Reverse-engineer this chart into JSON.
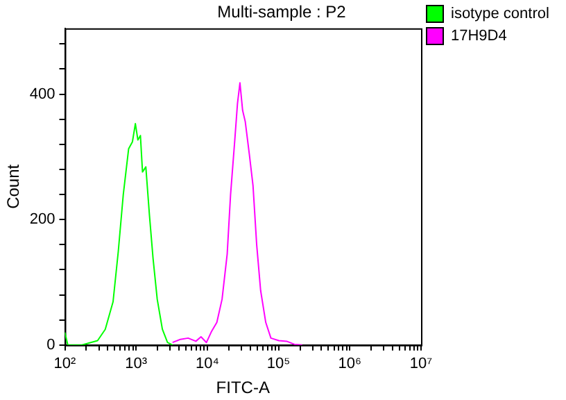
{
  "chart_data": {
    "type": "line",
    "title": "Multi-sample : P2",
    "xlabel": "FITC-A",
    "ylabel": "Count",
    "log": "x",
    "grid": false,
    "legend": "right",
    "marker": "none",
    "line_style": "solid",
    "xlim": [
      100,
      10000000
    ],
    "ylim": [
      0,
      505
    ],
    "xticks": [
      {
        "value": 100,
        "label": "10²"
      },
      {
        "value": 200,
        "label": null
      },
      {
        "value": 300,
        "label": null
      },
      {
        "value": 400,
        "label": null
      },
      {
        "value": 500,
        "label": null
      },
      {
        "value": 600,
        "label": null
      },
      {
        "value": 700,
        "label": null
      },
      {
        "value": 800,
        "label": null
      },
      {
        "value": 900,
        "label": null
      },
      {
        "value": 1000,
        "label": "10³"
      },
      {
        "value": 2000,
        "label": null
      },
      {
        "value": 3000,
        "label": null
      },
      {
        "value": 4000,
        "label": null
      },
      {
        "value": 5000,
        "label": null
      },
      {
        "value": 6000,
        "label": null
      },
      {
        "value": 7000,
        "label": null
      },
      {
        "value": 8000,
        "label": null
      },
      {
        "value": 9000,
        "label": null
      },
      {
        "value": 10000,
        "label": "10⁴"
      },
      {
        "value": 20000,
        "label": null
      },
      {
        "value": 30000,
        "label": null
      },
      {
        "value": 40000,
        "label": null
      },
      {
        "value": 50000,
        "label": null
      },
      {
        "value": 60000,
        "label": null
      },
      {
        "value": 70000,
        "label": null
      },
      {
        "value": 80000,
        "label": null
      },
      {
        "value": 90000,
        "label": null
      },
      {
        "value": 100000,
        "label": "10⁵"
      },
      {
        "value": 200000,
        "label": null
      },
      {
        "value": 300000,
        "label": null
      },
      {
        "value": 400000,
        "label": null
      },
      {
        "value": 500000,
        "label": null
      },
      {
        "value": 600000,
        "label": null
      },
      {
        "value": 700000,
        "label": null
      },
      {
        "value": 800000,
        "label": null
      },
      {
        "value": 900000,
        "label": null
      },
      {
        "value": 1000000,
        "label": "10⁶"
      },
      {
        "value": 2000000,
        "label": null
      },
      {
        "value": 3000000,
        "label": null
      },
      {
        "value": 4000000,
        "label": null
      },
      {
        "value": 5000000,
        "label": null
      },
      {
        "value": 6000000,
        "label": null
      },
      {
        "value": 7000000,
        "label": null
      },
      {
        "value": 8000000,
        "label": null
      },
      {
        "value": 9000000,
        "label": null
      },
      {
        "value": 10000000,
        "label": "10⁷"
      }
    ],
    "yticks": [
      0,
      {
        "value": 40,
        "label": null
      },
      {
        "value": 80,
        "label": null
      },
      {
        "value": 120,
        "label": null
      },
      {
        "value": 160,
        "label": null
      },
      200,
      {
        "value": 240,
        "label": null
      },
      {
        "value": 280,
        "label": null
      },
      {
        "value": 320,
        "label": null
      },
      {
        "value": 360,
        "label": null
      },
      400,
      {
        "value": 440,
        "label": null
      },
      {
        "value": 480,
        "label": null
      }
    ],
    "series": [
      {
        "name": "isotype control",
        "color": "#00ff00",
        "x": [
          100,
          110,
          174,
          288,
          369,
          475,
          562,
          661,
          786,
          888,
          977,
          1060,
          1150,
          1230,
          1370,
          1540,
          1730,
          1980,
          2340,
          2760,
          3250
        ],
        "values": [
          20,
          0,
          0,
          7,
          25,
          69,
          149,
          240,
          313,
          324,
          353,
          327,
          334,
          276,
          284,
          207,
          138,
          73,
          25,
          4,
          0
        ]
      },
      {
        "name": "17H9D4",
        "color": "#ff00ff",
        "x": [
          3250,
          4180,
          5370,
          6910,
          8150,
          9720,
          11500,
          13600,
          16100,
          19000,
          21200,
          24300,
          26500,
          28700,
          31300,
          34100,
          38800,
          43800,
          49300,
          56000,
          66100,
          78100,
          101000,
          130000,
          167000,
          215000
        ],
        "values": [
          4,
          9,
          11,
          6,
          13,
          4,
          22,
          36,
          73,
          145,
          240,
          327,
          385,
          418,
          374,
          356,
          305,
          254,
          160,
          87,
          36,
          11,
          7,
          6,
          1,
          0
        ]
      }
    ]
  }
}
